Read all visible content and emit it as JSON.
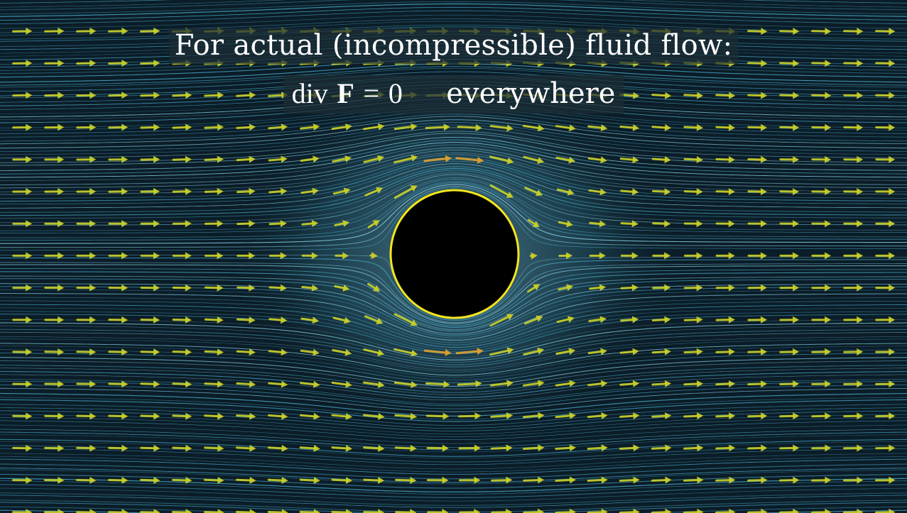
{
  "caption": {
    "line1": "For actual (incompressible) fluid flow:",
    "operator": "div",
    "field": "F",
    "equals": "=",
    "value": "0",
    "qualifier": "everywhere"
  },
  "colors": {
    "background": "#0b1d28",
    "streamline": "#4fb6d6",
    "streamline_bright": "#8ad8ee",
    "vector": "#c9cf2a",
    "vector_fast": "#e0a030",
    "vector_fastest": "#e06040",
    "obstacle_fill": "#000000",
    "obstacle_stroke": "#f3e61e"
  },
  "icons": {
    "obstacle": "circle-obstacle-icon",
    "vector": "arrow-right-icon"
  }
}
